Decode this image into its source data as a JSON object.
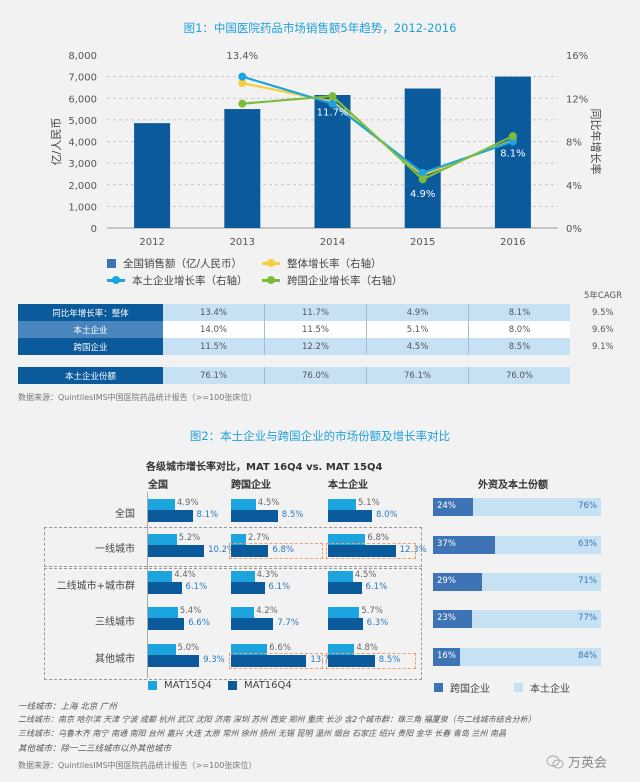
{
  "fig1": {
    "title": "图1：中国医院药品市场销售额5年趋势，2012-2016",
    "legend": {
      "sales": "全国销售额（亿/人民币）",
      "overall": "整体增长率（右轴）",
      "local": "本土企业增长率（右轴）",
      "mnc": "跨国企业增长率（右轴）"
    },
    "colors": {
      "bar": "#0b5a9c",
      "overall": "#f5cf3d",
      "local": "#1ba4dd",
      "mnc": "#7dbb3b",
      "legend_bar": "#3e74b6"
    }
  },
  "chart_data": [
    {
      "type": "bar+line",
      "title": "图1：中国医院药品市场销售额5年趋势，2012-2016",
      "ylabel": "亿/人民币",
      "y2label": "同比年增长率",
      "categories": [
        "2012",
        "2013",
        "2014",
        "2015",
        "2016"
      ],
      "ylim": [
        0,
        8000
      ],
      "yticks": [
        "0",
        "1,000",
        "2,000",
        "3,000",
        "4,000",
        "5,000",
        "6,000",
        "7,000",
        "8,000"
      ],
      "y2lim": [
        0,
        16
      ],
      "y2ticks": [
        "0%",
        "4%",
        "8%",
        "12%",
        "16%"
      ],
      "bars": {
        "name": "全国销售额（亿/人民币）",
        "values": [
          4850,
          5500,
          6150,
          6450,
          7000
        ]
      },
      "series": [
        {
          "name": "整体增长率（右轴）",
          "values": [
            null,
            13.4,
            11.7,
            4.9,
            8.1
          ]
        },
        {
          "name": "本土企业增长率（右轴）",
          "values": [
            null,
            14.0,
            11.5,
            5.1,
            8.0
          ]
        },
        {
          "name": "跨国企业增长率（右轴）",
          "values": [
            null,
            11.5,
            12.2,
            4.5,
            8.5
          ]
        }
      ],
      "data_labels": [
        "13.4%",
        "11.7%",
        "4.9%",
        "8.1%"
      ],
      "grid": true,
      "legend_position": "bottom"
    },
    {
      "type": "bar",
      "title": "各级城市增长率对比，MAT 16Q4 vs. MAT 15Q4",
      "groups": [
        "全国",
        "跨国企业",
        "本土企业"
      ],
      "categories": [
        "全国",
        "一线城市",
        "二线城市+城市群",
        "三线城市",
        "其他城市"
      ],
      "series": [
        {
          "name": "MAT15Q4",
          "color": "#1ba4dd",
          "values": {
            "全国": [
              4.9,
              5.2,
              4.4,
              5.4,
              5.0
            ],
            "跨国企业": [
              4.5,
              2.7,
              4.3,
              4.2,
              6.6
            ],
            "本土企业": [
              5.1,
              6.8,
              4.5,
              5.7,
              4.8
            ]
          }
        },
        {
          "name": "MAT16Q4",
          "color": "#0b5a9c",
          "values": {
            "全国": [
              8.1,
              10.2,
              6.1,
              6.6,
              9.3
            ],
            "跨国企业": [
              8.5,
              6.8,
              6.1,
              7.7,
              13.7
            ],
            "本土企业": [
              8.0,
              12.3,
              6.1,
              6.3,
              8.5
            ]
          }
        }
      ],
      "legend_position": "bottom"
    },
    {
      "type": "bar",
      "stacked": true,
      "title": "外资及本土份额",
      "categories": [
        "全国",
        "一线城市",
        "二线城市+城市群",
        "三线城市",
        "其他城市"
      ],
      "series": [
        {
          "name": "跨国企业",
          "color": "#3e74b6",
          "values": [
            24,
            37,
            29,
            23,
            16
          ]
        },
        {
          "name": "本土企业",
          "color": "#c5e1f3",
          "values": [
            76,
            63,
            71,
            77,
            84
          ]
        }
      ],
      "legend_position": "bottom"
    }
  ],
  "table": {
    "cagr_header": "5年CAGR",
    "rows": [
      {
        "label": "同比年增长率：整体",
        "values": [
          "13.4%",
          "11.7%",
          "4.9%",
          "8.1%"
        ],
        "cagr": "9.5%"
      },
      {
        "label": "本土企业",
        "values": [
          "14.0%",
          "11.5%",
          "5.1%",
          "8.0%"
        ],
        "cagr": "9.6%"
      },
      {
        "label": "跨国企业",
        "values": [
          "11.5%",
          "12.2%",
          "4.5%",
          "8.5%"
        ],
        "cagr": "9.1%"
      }
    ],
    "share_row": {
      "label": "本土企业份额",
      "values": [
        "76.1%",
        "76.0%",
        "76.1%",
        "76.0%"
      ]
    }
  },
  "source": "数据来源：QuintilesIMS中国医院药品统计报告（>=100张床位）",
  "fig2": {
    "title": "图2：本土企业与跨国企业的市场份额及增长率对比",
    "subtitle": "各级城市增长率对比，MAT 16Q4 vs. MAT 15Q4",
    "group_headers": [
      "全国",
      "跨国企业",
      "本土企业"
    ],
    "share_title": "外资及本土份额",
    "legend_left": [
      "MAT15Q4",
      "MAT16Q4"
    ],
    "legend_right": [
      "跨国企业",
      "本土企业"
    ]
  },
  "footnotes": [
    "一线城市：上海 北京 广州",
    "二线城市：南京 哈尔滨 天津 宁波 成都 杭州 武汉 沈阳 济南 深圳 苏州 西安 郑州 重庆 长沙 含2个城市群：珠三角 福厦泉（与二线城市结合分析）",
    "三线城市：乌鲁木齐 南宁 南通 南阳 台州 嘉兴 大连 太原 常州 徐州 扬州 无锡 昆明 温州 烟台 石家庄 绍兴 贵阳 金华 长春 青岛 兰州 南昌",
    "其他城市：除一二三线城市以外其他城市"
  ],
  "watermark": "万英会"
}
